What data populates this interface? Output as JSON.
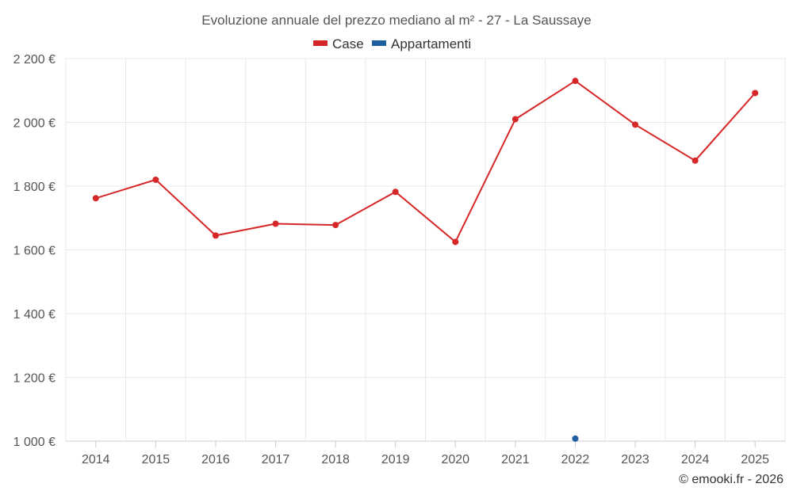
{
  "chart_data": {
    "type": "line",
    "title": "Evoluzione annuale del prezzo mediano al m² - 27 - La Saussaye",
    "categories": [
      "2014",
      "2015",
      "2016",
      "2017",
      "2018",
      "2019",
      "2020",
      "2021",
      "2022",
      "2023",
      "2024",
      "2025"
    ],
    "y_ticks": [
      "1 000 €",
      "1 200 €",
      "1 400 €",
      "1 600 €",
      "1 800 €",
      "2 000 €",
      "2 200 €"
    ],
    "ylim": [
      1000,
      2200
    ],
    "grid": true,
    "legend_position": "top-center",
    "series": [
      {
        "name": "Case",
        "color": "#d62728",
        "values": [
          1762,
          1820,
          1645,
          1682,
          1678,
          1782,
          1625,
          2010,
          2130,
          1993,
          1880,
          2092
        ]
      },
      {
        "name": "Appartamenti",
        "color": "#1f5fa0",
        "values": [
          null,
          null,
          null,
          null,
          null,
          null,
          null,
          null,
          1008,
          null,
          null,
          null
        ]
      }
    ]
  },
  "credit": "© emooki.fr - 2026"
}
